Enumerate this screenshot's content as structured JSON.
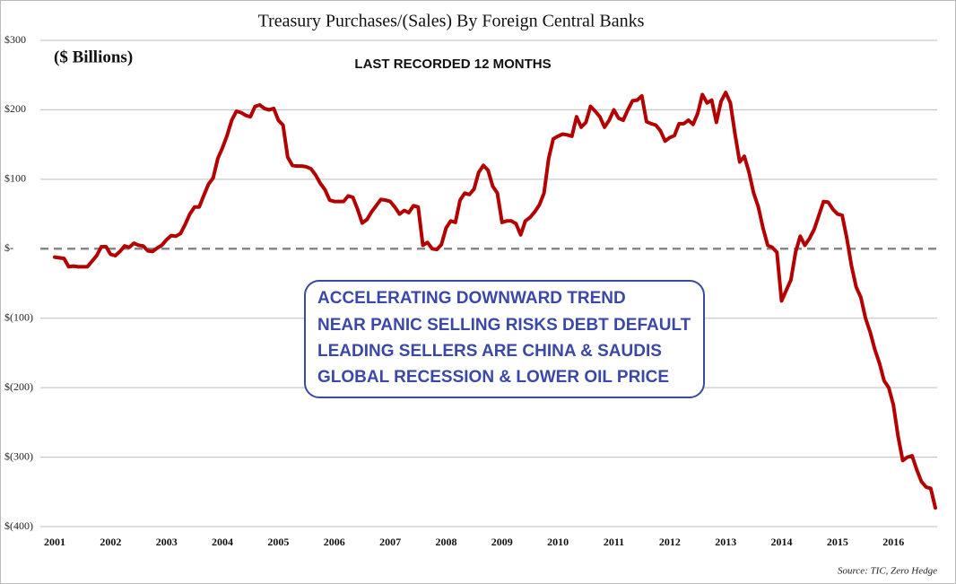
{
  "chart_data": {
    "type": "line",
    "title": "Treasury Purchases/(Sales) By Foreign Central Banks",
    "subtitle": "($ Billions)",
    "annotations": [
      "LAST RECORDED 12 MONTHS",
      "ACCELERATING DOWNWARD TREND",
      "NEAR PANIC SELLING RISKS DEBT DEFAULT",
      "LEADING SELLERS ARE CHINA & SAUDIS",
      "GLOBAL RECESSION & LOWER OIL PRICE"
    ],
    "source": "Source: TIC, Zero Hedge",
    "categories": [
      "2001",
      null,
      null,
      null,
      null,
      null,
      null,
      null,
      null,
      null,
      null,
      null,
      "2002",
      null,
      null,
      null,
      null,
      null,
      null,
      null,
      null,
      null,
      null,
      null,
      "2003",
      null,
      null,
      null,
      null,
      null,
      null,
      null,
      null,
      null,
      null,
      null,
      "2004",
      null,
      null,
      null,
      null,
      null,
      null,
      null,
      null,
      null,
      null,
      null,
      "2005",
      null,
      null,
      null,
      null,
      null,
      null,
      null,
      null,
      null,
      null,
      null,
      "2006",
      null,
      null,
      null,
      null,
      null,
      null,
      null,
      null,
      null,
      null,
      null,
      "2007",
      null,
      null,
      null,
      null,
      null,
      null,
      null,
      null,
      null,
      null,
      null,
      "2008",
      null,
      null,
      null,
      null,
      null,
      null,
      null,
      null,
      null,
      null,
      null,
      "2009",
      null,
      null,
      null,
      null,
      null,
      null,
      null,
      null,
      null,
      null,
      null,
      "2010",
      null,
      null,
      null,
      null,
      null,
      null,
      null,
      null,
      null,
      null,
      null,
      "2011",
      null,
      null,
      null,
      null,
      null,
      null,
      null,
      null,
      null,
      null,
      null,
      "2012",
      null,
      null,
      null,
      null,
      null,
      null,
      null,
      null,
      null,
      null,
      null,
      "2013",
      null,
      null,
      null,
      null,
      null,
      null,
      null,
      null,
      null,
      null,
      null,
      "2014",
      null,
      null,
      null,
      null,
      null,
      null,
      null,
      null,
      null,
      null,
      null,
      "2015",
      null,
      null,
      null,
      null,
      null,
      null,
      null,
      null,
      null,
      null,
      null,
      "2016",
      null,
      null,
      null,
      null,
      null,
      null,
      null,
      null,
      null
    ],
    "series": [
      {
        "color": "#b30000",
        "values": [
          -12,
          -13,
          -14,
          -26,
          -25,
          -26,
          -26,
          -26,
          -18,
          -10,
          3,
          3,
          -8,
          -10,
          -4,
          4,
          2,
          8,
          5,
          4,
          -3,
          -4,
          1,
          5,
          13,
          19,
          18,
          22,
          35,
          50,
          60,
          60,
          77,
          93,
          102,
          130,
          145,
          163,
          185,
          198,
          196,
          192,
          190,
          205,
          207,
          202,
          200,
          202,
          185,
          178,
          132,
          120,
          119,
          119,
          118,
          115,
          106,
          94,
          85,
          70,
          68,
          68,
          68,
          76,
          74,
          57,
          37,
          42,
          53,
          62,
          71,
          70,
          68,
          60,
          50,
          55,
          52,
          62,
          60,
          5,
          9,
          0,
          -1,
          6,
          30,
          40,
          38,
          70,
          80,
          78,
          86,
          110,
          120,
          113,
          90,
          80,
          38,
          40,
          40,
          36,
          20,
          40,
          45,
          53,
          63,
          80,
          130,
          158,
          162,
          165,
          164,
          162,
          190,
          175,
          182,
          205,
          198,
          190,
          175,
          185,
          200,
          188,
          185,
          200,
          213,
          214,
          220,
          183,
          180,
          178,
          170,
          155,
          160,
          163,
          180,
          180,
          185,
          179,
          195,
          222,
          210,
          214,
          182,
          212,
          225,
          210,
          165,
          125,
          133,
          110,
          80,
          60,
          30,
          5,
          2,
          -5,
          -75,
          -60,
          -45,
          -5,
          18,
          5,
          15,
          28,
          48,
          68,
          67,
          57,
          50,
          48,
          15,
          -25,
          -55,
          -70,
          -100,
          -120,
          -145,
          -165,
          -190,
          -200,
          -225,
          -270,
          -305,
          -300,
          -298,
          -318,
          -335,
          -343,
          -345,
          -373
        ]
      }
    ],
    "ylim": [
      -400,
      300
    ],
    "yticks": [
      {
        "value": -400,
        "label": "$(400)"
      },
      {
        "value": -300,
        "label": "$(300)"
      },
      {
        "value": -200,
        "label": "$(200)"
      },
      {
        "value": -100,
        "label": "$(100)"
      },
      {
        "value": 0,
        "label": "$-"
      },
      {
        "value": 100,
        "label": "$100"
      },
      {
        "value": 200,
        "label": "$200"
      },
      {
        "value": 300,
        "label": "$300"
      }
    ],
    "grid": true,
    "zero_line": true
  }
}
